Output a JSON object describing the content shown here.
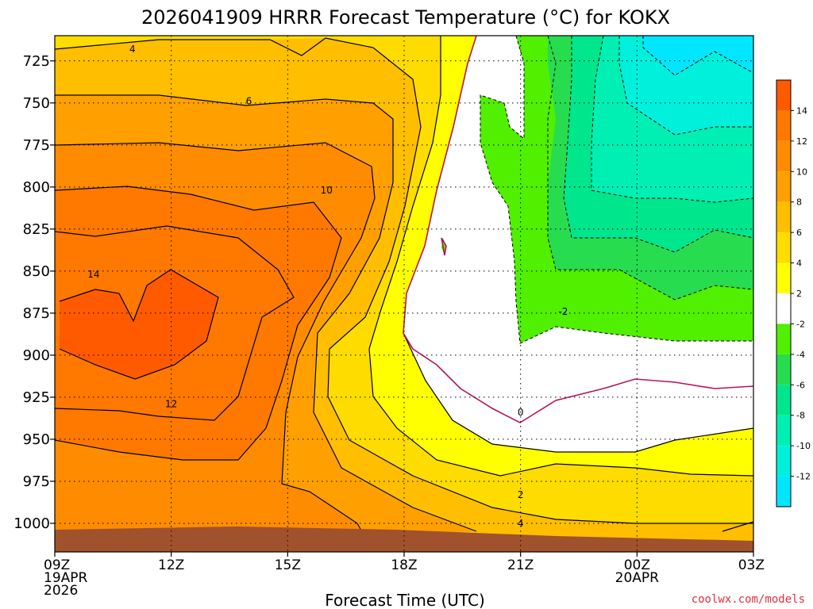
{
  "chart_data": {
    "type": "heatmap",
    "title": "2026041909 HRRR Forecast Temperature (°C) for KOKX",
    "xlabel": "Forecast Time (UTC)",
    "ylabel": "",
    "x_ticks": [
      {
        "label": "09Z",
        "sub": [
          "19APR",
          "2026"
        ]
      },
      {
        "label": "12Z",
        "sub": []
      },
      {
        "label": "15Z",
        "sub": []
      },
      {
        "label": "18Z",
        "sub": []
      },
      {
        "label": "21Z",
        "sub": []
      },
      {
        "label": "00Z",
        "sub": [
          "20APR"
        ]
      },
      {
        "label": "03Z",
        "sub": []
      }
    ],
    "x_hours": [
      9,
      12,
      15,
      18,
      21,
      24,
      27
    ],
    "y_ticks": [
      725,
      750,
      775,
      800,
      825,
      850,
      875,
      900,
      925,
      950,
      975,
      1000
    ],
    "ylim": [
      710,
      1017
    ],
    "y_axis": "pressure (hPa), increasing downward",
    "grid": true,
    "colorbar": {
      "position": "right",
      "bands": [
        {
          "range": [
            14,
            16
          ],
          "color": "#ff5a00"
        },
        {
          "range": [
            12,
            14
          ],
          "color": "#ff7800"
        },
        {
          "range": [
            10,
            12
          ],
          "color": "#ff8c00"
        },
        {
          "range": [
            8,
            10
          ],
          "color": "#ffa000"
        },
        {
          "range": [
            6,
            8
          ],
          "color": "#ffbe00"
        },
        {
          "range": [
            4,
            6
          ],
          "color": "#ffdc00"
        },
        {
          "range": [
            2,
            4
          ],
          "color": "#ffff00"
        },
        {
          "range": [
            -2,
            2
          ],
          "color": "#ffffff"
        },
        {
          "range": [
            -4,
            -2
          ],
          "color": "#50f000"
        },
        {
          "range": [
            -6,
            -4
          ],
          "color": "#28dc50"
        },
        {
          "range": [
            -8,
            -6
          ],
          "color": "#00e68c"
        },
        {
          "range": [
            -10,
            -8
          ],
          "color": "#00f0b4"
        },
        {
          "range": [
            -12,
            -10
          ],
          "color": "#00f0dc"
        },
        {
          "range": [
            -14,
            -12
          ],
          "color": "#00e6ff"
        }
      ],
      "labels": [
        "14",
        "12",
        "10",
        "8",
        "6",
        "4",
        "2",
        "-2",
        "-4",
        "-6",
        "-8",
        "-10",
        "-12"
      ]
    },
    "contour_labels": [
      {
        "value": "4",
        "hour": 11.0,
        "p": 718
      },
      {
        "value": "6",
        "hour": 14.0,
        "p": 749
      },
      {
        "value": "10",
        "hour": 16.0,
        "p": 802
      },
      {
        "value": "14",
        "hour": 10.0,
        "p": 852
      },
      {
        "value": "12",
        "hour": 12.0,
        "p": 929
      },
      {
        "value": "-2",
        "hour": 22.1,
        "p": 874
      },
      {
        "value": "0",
        "hour": 21.0,
        "p": 934
      },
      {
        "value": "2",
        "hour": 21.0,
        "p": 983
      },
      {
        "value": "4",
        "hour": 21.0,
        "p": 1000
      }
    ],
    "ground_color": "#a0522d"
  },
  "credit": "coolwx.com/models"
}
